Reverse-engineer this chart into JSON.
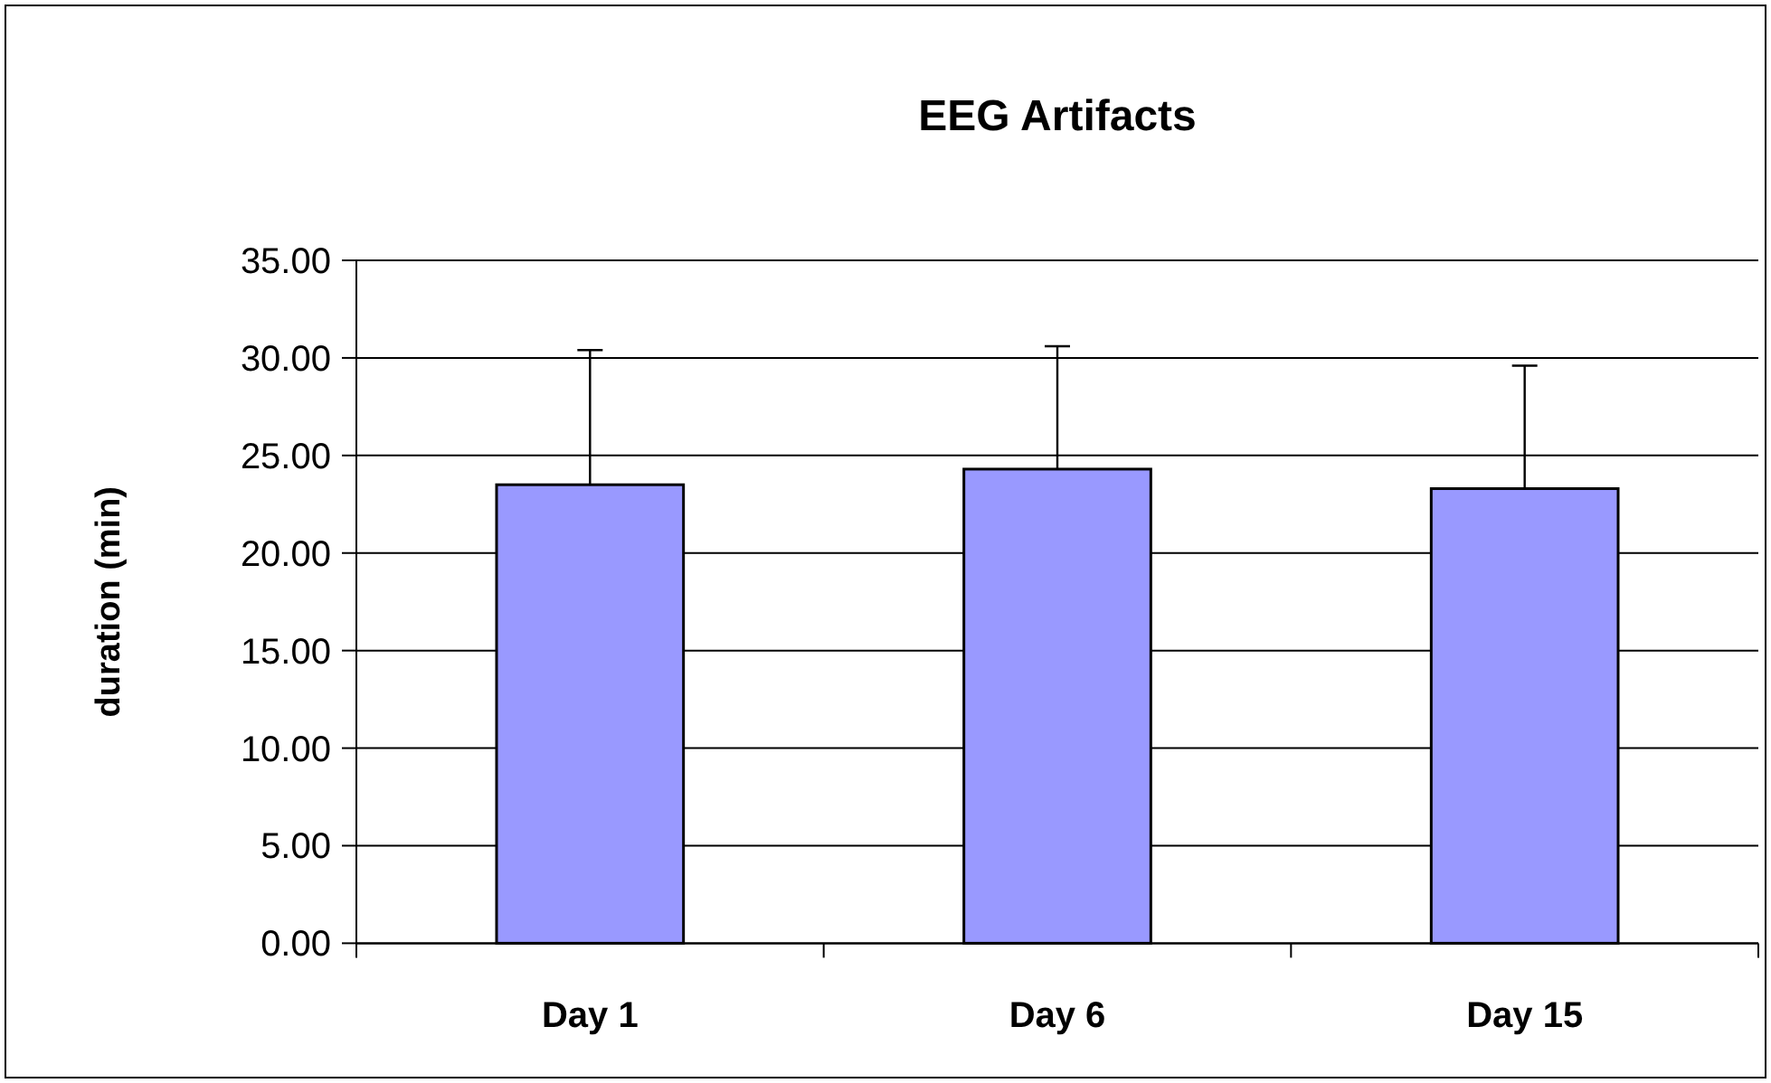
{
  "chart_data": {
    "type": "bar",
    "title": "EEG Artifacts",
    "ylabel": "duration (min)",
    "categories": [
      "Day 1",
      "Day 6",
      "Day 15"
    ],
    "values": [
      23.5,
      24.3,
      23.3
    ],
    "errors": [
      [
        23.5,
        30.4
      ],
      [
        24.3,
        30.6
      ],
      [
        23.3,
        29.6
      ]
    ],
    "color": "#9999ff",
    "ylim": [
      0,
      35
    ],
    "yticks": [
      {
        "value": 0,
        "label": "0.00"
      },
      {
        "value": 5,
        "label": "5.00"
      },
      {
        "value": 10,
        "label": "10.00"
      },
      {
        "value": 15,
        "label": "15.00"
      },
      {
        "value": 20,
        "label": "20.00"
      },
      {
        "value": 25,
        "label": "25.00"
      },
      {
        "value": 30,
        "label": "30.00"
      },
      {
        "value": 35,
        "label": "35.00"
      }
    ],
    "grid": "y"
  }
}
